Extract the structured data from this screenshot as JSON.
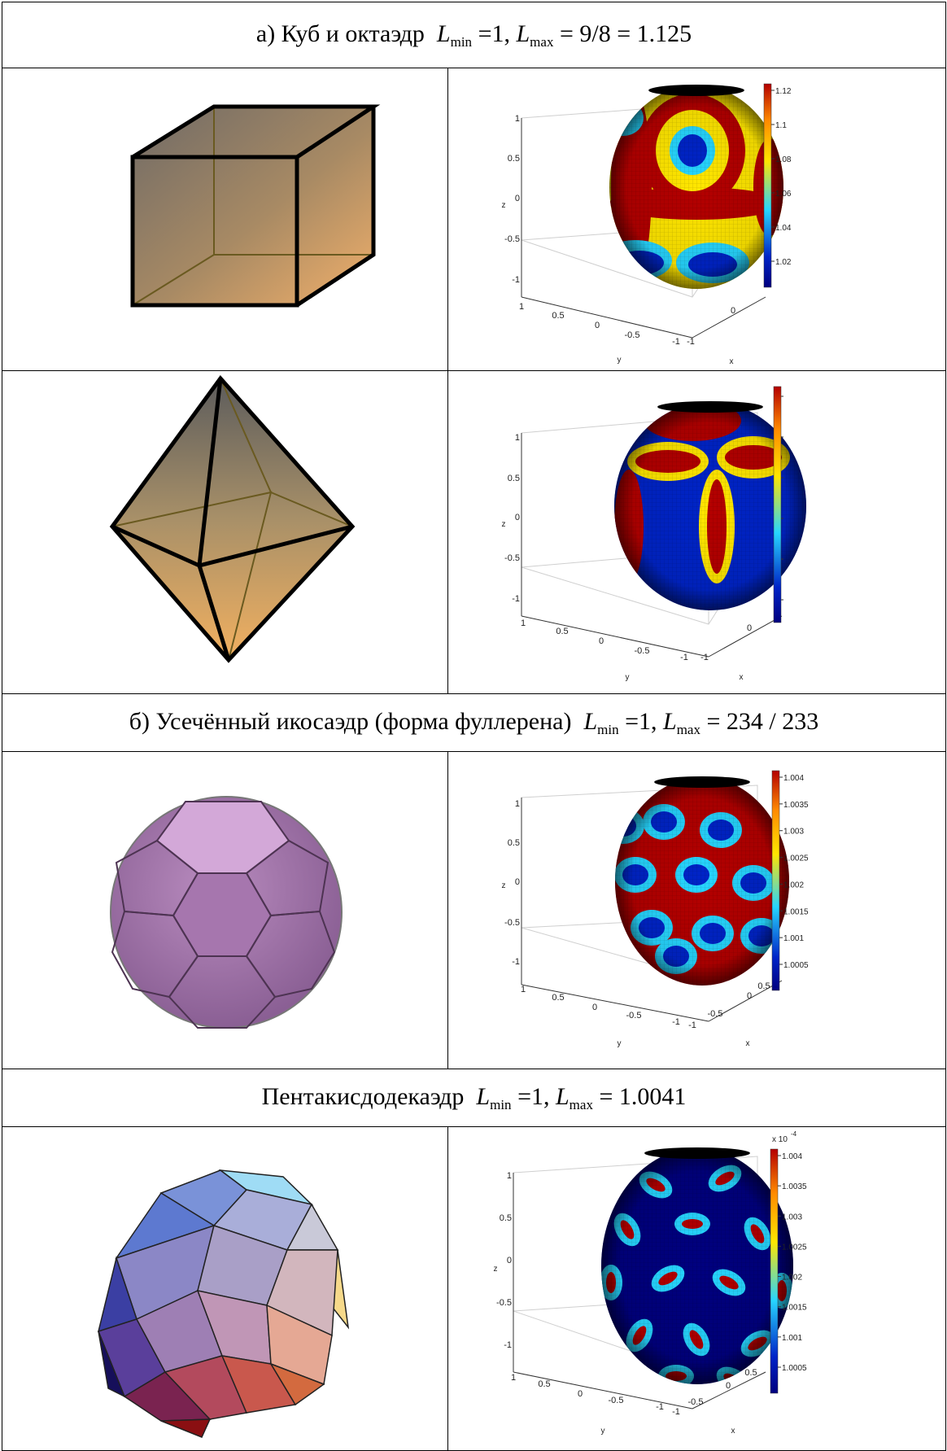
{
  "sections": {
    "a": {
      "prefix": "а) Куб и октаэдр",
      "lmin_symbol": "L",
      "lmin_sub": "min",
      "lmin_eq": "=1,",
      "lmax_symbol": "L",
      "lmax_sub": "max",
      "lmax_eq": "= 9/8 = 1.125"
    },
    "b": {
      "prefix": "б)    Усечённый икосаэдр (форма фуллерена)",
      "lmin_symbol": "L",
      "lmin_sub": "min",
      "lmin_eq": "=1,",
      "lmax_symbol": "L",
      "lmax_sub": "max",
      "lmax_eq": "= 234 / 233"
    },
    "c": {
      "prefix": "Пентакисдодекаэдр",
      "lmin_symbol": "L",
      "lmin_sub": "min",
      "lmin_eq": "=1,",
      "lmax_symbol": "L",
      "lmax_sub": "max",
      "lmax_eq": "= 1.0041"
    }
  },
  "plots": {
    "cube": {
      "z_ticks": [
        "1",
        "0.5",
        "0",
        "-0.5",
        "-1"
      ],
      "y_ticks": [
        "1",
        "0.5",
        "0",
        "-0.5",
        "-1"
      ],
      "x_ticks": [
        "-1",
        "0"
      ],
      "z_label": "z",
      "y_label": "y",
      "x_label": "x",
      "colorbar_ticks": [
        "1.12",
        "1.1",
        "1.08",
        "1.06",
        "1.04",
        "1.02"
      ]
    },
    "octa": {
      "z_ticks": [
        "1",
        "0.5",
        "0",
        "-0.5",
        "-1"
      ],
      "y_ticks": [
        "1",
        "0.5",
        "0",
        "-0.5",
        "-1"
      ],
      "x_ticks": [
        "-1",
        "0"
      ],
      "z_label": "z",
      "y_label": "y",
      "x_label": "x"
    },
    "fullerene": {
      "z_ticks": [
        "1",
        "0.5",
        "0",
        "-0.5",
        "-1"
      ],
      "y_ticks": [
        "1",
        "0.5",
        "0",
        "-0.5",
        "-1"
      ],
      "x_ticks": [
        "-1",
        "-0.5",
        "0",
        "0.5"
      ],
      "z_label": "z",
      "y_label": "y",
      "x_label": "x",
      "colorbar_ticks": [
        "1.004",
        "1.0035",
        "1.003",
        "1.0025",
        "1.002",
        "1.0015",
        "1.001",
        "1.0005"
      ]
    },
    "pentakis": {
      "z_ticks": [
        "1",
        "0.5",
        "0",
        "-0.5",
        "-1"
      ],
      "y_ticks": [
        "1",
        "0.5",
        "0",
        "-0.5",
        "-1"
      ],
      "x_ticks": [
        "-1",
        "-0.5",
        "0",
        "0.5"
      ],
      "z_label": "z",
      "y_label": "y",
      "x_label": "x",
      "colorbar_exp": "x 10",
      "colorbar_exp_power": "-4",
      "colorbar_ticks": [
        "1.004",
        "1.0035",
        "1.003",
        "1.0025",
        "1.002",
        "1.0015",
        "1.001",
        "1.0005"
      ]
    }
  },
  "colors": {
    "jet_red": "#b40000",
    "jet_orange": "#ff8a00",
    "jet_yellow": "#ffe600",
    "jet_cyan": "#27d6ff",
    "jet_blue": "#0024c8",
    "jet_navy": "#00007f"
  }
}
